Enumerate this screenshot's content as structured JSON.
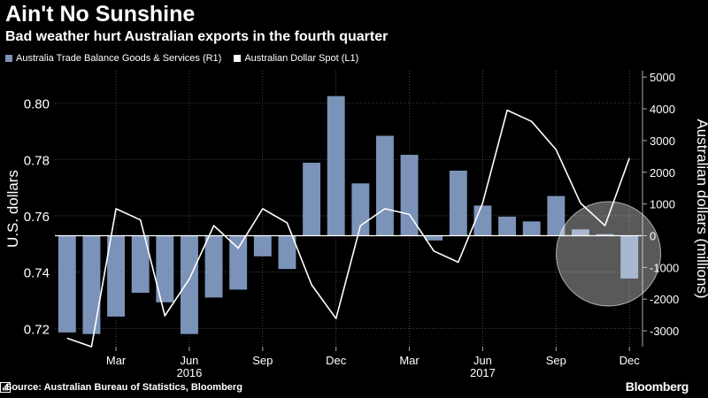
{
  "header": {
    "title": "Ain't No Sunshine",
    "subtitle": "Bad weather hurt Australian exports in the fourth quarter"
  },
  "footer": {
    "source": "Source: Australian Bureau of Statistics, Bloomberg",
    "brand": "Bloomberg"
  },
  "colors": {
    "bar": "#7b93b8",
    "line": "#ffffff",
    "grid": "#555555",
    "highlight": "#ffffff"
  },
  "chart_data": {
    "type": "bar",
    "title": "Ain't No Sunshine",
    "legend": [
      {
        "label": "Australia Trade Balance Goods & Services  (R1)",
        "swatch": "#7b93b8"
      },
      {
        "label": "Australian Dollar Spot  (L1)",
        "swatch": "#ffffff"
      }
    ],
    "ylabel_left": "U.S. dollars",
    "ylabel_right": "Australian dollars (millions)",
    "yticks_left": [
      "0.72",
      "0.74",
      "0.76",
      "0.78",
      "0.80"
    ],
    "yticks_left_values": [
      0.72,
      0.74,
      0.76,
      0.78,
      0.8
    ],
    "ylim_left": [
      0.7135,
      0.8115
    ],
    "yticks_right": [
      "-3000",
      "-2000",
      "-1000",
      "0",
      "1000",
      "2000",
      "3000",
      "4000",
      "5000"
    ],
    "yticks_right_values": [
      -3000,
      -2000,
      -1000,
      0,
      1000,
      2000,
      3000,
      4000,
      5000
    ],
    "ylim_right": [
      -3500,
      5200
    ],
    "xticks": [
      "Mar",
      "Jun",
      "Sep",
      "Dec",
      "Mar",
      "Jun",
      "Sep",
      "Dec"
    ],
    "xtick_index": [
      2,
      5,
      8,
      11,
      14,
      17,
      20,
      23
    ],
    "year_labels": [
      "2016",
      "2017"
    ],
    "year_index": [
      5,
      17
    ],
    "categories": [
      "Jan 2016",
      "Feb 2016",
      "Mar 2016",
      "Apr 2016",
      "May 2016",
      "Jun 2016",
      "Jul 2016",
      "Aug 2016",
      "Sep 2016",
      "Oct 2016",
      "Nov 2016",
      "Dec 2016",
      "Jan 2017",
      "Feb 2017",
      "Mar 2017",
      "Apr 2017",
      "May 2017",
      "Jun 2017",
      "Jul 2017",
      "Aug 2017",
      "Sep 2017",
      "Oct 2017",
      "Nov 2017",
      "Dec 2017"
    ],
    "series": [
      {
        "name": "Australia Trade Balance Goods & Services (R1)",
        "kind": "bar",
        "axis": "right",
        "values": [
          -3050,
          -3100,
          -2550,
          -1800,
          -2100,
          -3100,
          -1950,
          -1700,
          -650,
          -1050,
          2300,
          4400,
          1650,
          3150,
          2550,
          -150,
          2050,
          950,
          600,
          450,
          1250,
          200,
          50,
          -1350
        ]
      },
      {
        "name": "Australian Dollar Spot (L1)",
        "kind": "line",
        "axis": "left",
        "values": [
          0.7165,
          0.7135,
          0.7625,
          0.7585,
          0.7245,
          0.7375,
          0.7565,
          0.7485,
          0.7625,
          0.7575,
          0.7355,
          0.7235,
          0.7565,
          0.7625,
          0.7605,
          0.7475,
          0.7435,
          0.7645,
          0.7975,
          0.7935,
          0.7835,
          0.7645,
          0.7565,
          0.7805
        ]
      }
    ],
    "highlight": {
      "shape": "circle",
      "covers": [
        "Oct 2017",
        "Nov 2017",
        "Dec 2017"
      ]
    },
    "grid": true
  }
}
